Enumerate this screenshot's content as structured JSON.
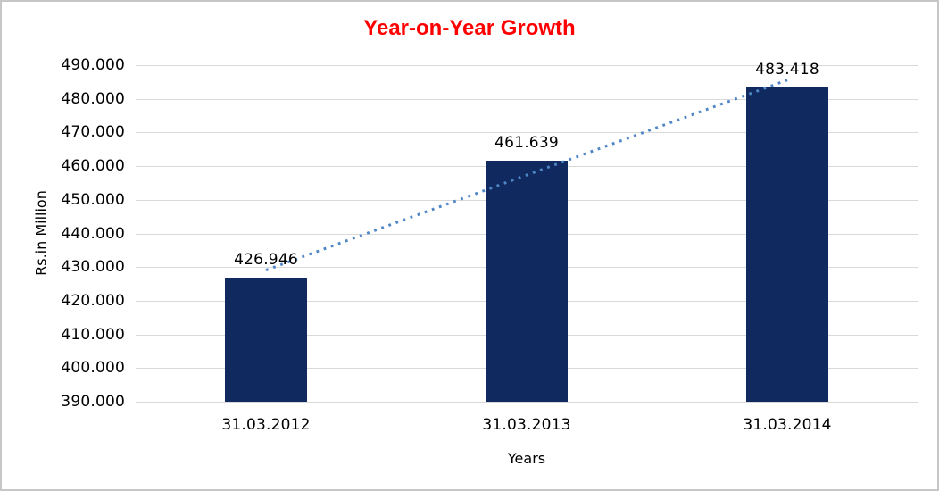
{
  "chart_data": {
    "type": "bar",
    "title": "Year-on-Year Growth",
    "title_color": "#FF0000",
    "xlabel": "Years",
    "ylabel": "Rs.in Million",
    "categories": [
      "31.03.2012",
      "31.03.2013",
      "31.03.2014"
    ],
    "values": [
      426.946,
      461.639,
      483.418
    ],
    "data_labels": [
      "426.946",
      "461.639",
      "483.418"
    ],
    "bar_color": "#102A60",
    "grid_color": "#D9D9D9",
    "text_color": "#000000",
    "background_color": "#FFFFFF",
    "legend": "none",
    "grid": "horizontal",
    "y_axis": {
      "min": 390,
      "max": 490,
      "step": 10,
      "tick_labels": [
        "390.000",
        "400.000",
        "410.000",
        "420.000",
        "430.000",
        "440.000",
        "450.000",
        "460.000",
        "470.000",
        "480.000",
        "490.000"
      ]
    },
    "trendline": {
      "type": "linear",
      "style": "dotted",
      "color": "#4F86C6"
    }
  }
}
